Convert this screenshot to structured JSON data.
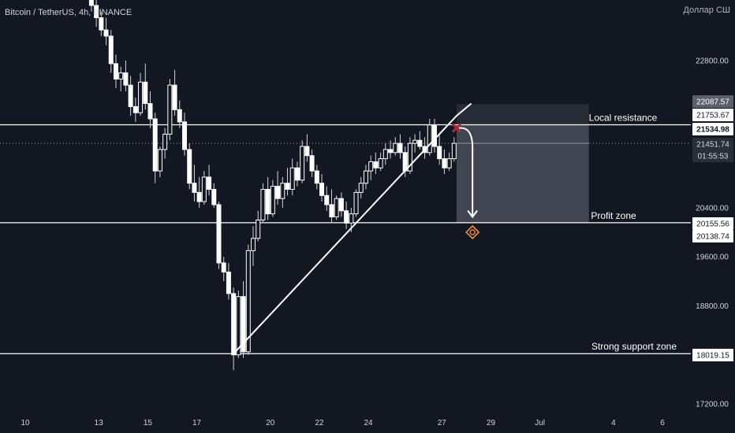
{
  "header": {
    "symbol": "Bitcoin / TetherUS, 4h, BINANCE",
    "currency": "Доллар СШ"
  },
  "chart_data": {
    "type": "candlestick",
    "yaxis_ticks": [
      22800,
      20400,
      19600,
      18800,
      17200
    ],
    "ylim": [
      17000,
      23500
    ],
    "xaxis_ticks": [
      {
        "label": "10",
        "day": 10
      },
      {
        "label": "13",
        "day": 13
      },
      {
        "label": "15",
        "day": 15
      },
      {
        "label": "17",
        "day": 17
      },
      {
        "label": "20",
        "day": 20
      },
      {
        "label": "22",
        "day": 22
      },
      {
        "label": "24",
        "day": 24
      },
      {
        "label": "27",
        "day": 27
      },
      {
        "label": "29",
        "day": 29
      },
      {
        "label": "Jul",
        "day": 31
      },
      {
        "label": "4",
        "day": 34
      },
      {
        "label": "6",
        "day": 36
      }
    ],
    "price_tags": [
      {
        "label": "22087.57",
        "price": 22087.57,
        "style": "gray"
      },
      {
        "label": "21753.67",
        "price": 21753.67,
        "style": "white"
      },
      {
        "label": "21534.98",
        "price": 21534.98,
        "style": "highlight"
      },
      {
        "label": "21451.74",
        "price": 21451.74,
        "style": "dark"
      },
      {
        "label": "01:55:53",
        "price": 21300,
        "style": "dark-sub"
      },
      {
        "label": "20155.56",
        "price": 20155.56,
        "style": "white"
      },
      {
        "label": "20138.74",
        "price": 20138.74,
        "style": "white"
      },
      {
        "label": "18019.15",
        "price": 18019.15,
        "style": "white"
      }
    ],
    "levels": [
      {
        "name": "Local resistance",
        "price": 21753.67
      },
      {
        "name": "Profit zone",
        "price": 20155.56
      },
      {
        "name": "Strong support zone",
        "price": 18019.15
      }
    ],
    "current_price": 21451.74,
    "short_position": {
      "entry": 21753.67,
      "stop": 22087.57,
      "target": 20155.56
    },
    "trendline": {
      "from": [
        18.5,
        18019.15
      ],
      "to": [
        27.6,
        21900
      ]
    },
    "candles": [
      [
        12.7,
        23900,
        24100,
        23600,
        23700
      ],
      [
        12.9,
        23700,
        23900,
        23350,
        23500
      ],
      [
        13.1,
        23500,
        23600,
        23200,
        23300
      ],
      [
        13.3,
        23300,
        23500,
        23050,
        23200
      ],
      [
        13.5,
        23200,
        23300,
        22600,
        22750
      ],
      [
        13.7,
        22750,
        22900,
        22350,
        22500
      ],
      [
        13.9,
        22500,
        22700,
        22300,
        22600
      ],
      [
        14.1,
        22600,
        22800,
        22300,
        22400
      ],
      [
        14.3,
        22400,
        22550,
        21900,
        22050
      ],
      [
        14.5,
        22050,
        22200,
        21800,
        21950
      ],
      [
        14.7,
        21950,
        22600,
        21900,
        22450
      ],
      [
        14.9,
        22450,
        22750,
        22000,
        22100
      ],
      [
        15.1,
        22100,
        22300,
        21700,
        21850
      ],
      [
        15.3,
        21850,
        21950,
        20800,
        21000
      ],
      [
        15.5,
        21000,
        21400,
        20900,
        21350
      ],
      [
        15.7,
        21350,
        21700,
        21200,
        21600
      ],
      [
        15.9,
        21600,
        22500,
        21500,
        22400
      ],
      [
        16.1,
        22400,
        22650,
        21900,
        22000
      ],
      [
        16.3,
        22000,
        22150,
        21700,
        21800
      ],
      [
        16.5,
        21800,
        21950,
        21250,
        21350
      ],
      [
        16.7,
        21350,
        21450,
        20700,
        20800
      ],
      [
        16.9,
        20800,
        21100,
        20500,
        20650
      ],
      [
        17.1,
        20650,
        20900,
        20400,
        20500
      ],
      [
        17.3,
        20500,
        21000,
        20450,
        20900
      ],
      [
        17.5,
        20900,
        21100,
        20600,
        20700
      ],
      [
        17.7,
        20700,
        20800,
        20400,
        20450
      ],
      [
        17.9,
        20450,
        20500,
        19400,
        19500
      ],
      [
        18.1,
        19500,
        19600,
        19200,
        19350
      ],
      [
        18.3,
        19350,
        19500,
        18900,
        19000
      ],
      [
        18.5,
        19000,
        19100,
        17750,
        18000
      ],
      [
        18.7,
        18000,
        19050,
        17950,
        18950
      ],
      [
        18.9,
        18950,
        19200,
        17950,
        18050
      ],
      [
        19.1,
        18050,
        19800,
        18000,
        19700
      ],
      [
        19.3,
        19700,
        20100,
        19450,
        19900
      ],
      [
        19.5,
        19900,
        20350,
        19850,
        20200
      ],
      [
        19.7,
        20200,
        20800,
        20150,
        20700
      ],
      [
        19.9,
        20700,
        20900,
        20200,
        20300
      ],
      [
        20.1,
        20300,
        20850,
        20250,
        20750
      ],
      [
        20.3,
        20750,
        21000,
        20450,
        20550
      ],
      [
        20.5,
        20550,
        20900,
        20400,
        20800
      ],
      [
        20.7,
        20800,
        21050,
        20600,
        20700
      ],
      [
        20.9,
        20700,
        21200,
        20600,
        21050
      ],
      [
        21.1,
        21050,
        21150,
        20750,
        20850
      ],
      [
        21.3,
        20850,
        21500,
        20800,
        21400
      ],
      [
        21.5,
        21400,
        21600,
        21150,
        21250
      ],
      [
        21.7,
        21250,
        21350,
        20900,
        21000
      ],
      [
        21.9,
        21000,
        21100,
        20700,
        20800
      ],
      [
        22.1,
        20800,
        20950,
        20500,
        20600
      ],
      [
        22.3,
        20600,
        20750,
        20350,
        20450
      ],
      [
        22.5,
        20450,
        20700,
        20150,
        20250
      ],
      [
        22.7,
        20250,
        20600,
        20200,
        20550
      ],
      [
        22.9,
        20550,
        20650,
        20250,
        20350
      ],
      [
        23.1,
        20350,
        20500,
        20050,
        20150
      ],
      [
        23.3,
        20150,
        20400,
        20000,
        20300
      ],
      [
        23.5,
        20300,
        20700,
        20250,
        20650
      ],
      [
        23.7,
        20650,
        20900,
        20550,
        20800
      ],
      [
        23.9,
        20800,
        21100,
        20700,
        21000
      ],
      [
        24.1,
        21000,
        21250,
        20850,
        21150
      ],
      [
        24.3,
        21150,
        21300,
        20950,
        21050
      ],
      [
        24.5,
        21050,
        21300,
        21000,
        21200
      ],
      [
        24.7,
        21200,
        21450,
        21100,
        21350
      ],
      [
        24.9,
        21350,
        21500,
        21200,
        21300
      ],
      [
        25.1,
        21300,
        21550,
        21250,
        21450
      ],
      [
        25.3,
        21450,
        21600,
        21200,
        21300
      ],
      [
        25.5,
        21300,
        21400,
        20900,
        21000
      ],
      [
        25.7,
        21000,
        21550,
        20950,
        21450
      ],
      [
        25.9,
        21450,
        21600,
        21300,
        21500
      ],
      [
        26.1,
        21500,
        21650,
        21350,
        21400
      ],
      [
        26.3,
        21400,
        21550,
        21200,
        21300
      ],
      [
        26.5,
        21300,
        21850,
        21250,
        21750
      ],
      [
        26.7,
        21750,
        21850,
        21300,
        21400
      ],
      [
        26.9,
        21400,
        21600,
        21100,
        21200
      ],
      [
        27.1,
        21200,
        21350,
        20950,
        21050
      ],
      [
        27.3,
        21050,
        21300,
        21000,
        21200
      ],
      [
        27.5,
        21200,
        21550,
        21150,
        21450
      ]
    ]
  }
}
